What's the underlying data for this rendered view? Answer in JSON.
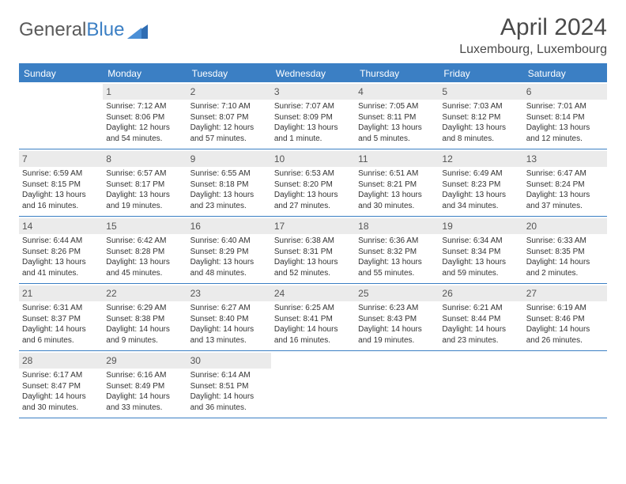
{
  "brand": {
    "name_left": "General",
    "name_right": "Blue"
  },
  "title": "April 2024",
  "location": "Luxembourg, Luxembourg",
  "colors": {
    "accent": "#3b7fc4",
    "header_text": "#ffffff",
    "daynum_bg": "#ebebeb",
    "text": "#333333",
    "title_text": "#4a4a4a",
    "background": "#ffffff"
  },
  "typography": {
    "title_fontsize": 30,
    "location_fontsize": 16,
    "dayname_fontsize": 12,
    "daynum_fontsize": 12,
    "info_fontsize": 10
  },
  "daynames": [
    "Sunday",
    "Monday",
    "Tuesday",
    "Wednesday",
    "Thursday",
    "Friday",
    "Saturday"
  ],
  "weeks": [
    [
      {
        "empty": true
      },
      {
        "num": "1",
        "sunrise": "Sunrise: 7:12 AM",
        "sunset": "Sunset: 8:06 PM",
        "day1": "Daylight: 12 hours",
        "day2": "and 54 minutes."
      },
      {
        "num": "2",
        "sunrise": "Sunrise: 7:10 AM",
        "sunset": "Sunset: 8:07 PM",
        "day1": "Daylight: 12 hours",
        "day2": "and 57 minutes."
      },
      {
        "num": "3",
        "sunrise": "Sunrise: 7:07 AM",
        "sunset": "Sunset: 8:09 PM",
        "day1": "Daylight: 13 hours",
        "day2": "and 1 minute."
      },
      {
        "num": "4",
        "sunrise": "Sunrise: 7:05 AM",
        "sunset": "Sunset: 8:11 PM",
        "day1": "Daylight: 13 hours",
        "day2": "and 5 minutes."
      },
      {
        "num": "5",
        "sunrise": "Sunrise: 7:03 AM",
        "sunset": "Sunset: 8:12 PM",
        "day1": "Daylight: 13 hours",
        "day2": "and 8 minutes."
      },
      {
        "num": "6",
        "sunrise": "Sunrise: 7:01 AM",
        "sunset": "Sunset: 8:14 PM",
        "day1": "Daylight: 13 hours",
        "day2": "and 12 minutes."
      }
    ],
    [
      {
        "num": "7",
        "sunrise": "Sunrise: 6:59 AM",
        "sunset": "Sunset: 8:15 PM",
        "day1": "Daylight: 13 hours",
        "day2": "and 16 minutes."
      },
      {
        "num": "8",
        "sunrise": "Sunrise: 6:57 AM",
        "sunset": "Sunset: 8:17 PM",
        "day1": "Daylight: 13 hours",
        "day2": "and 19 minutes."
      },
      {
        "num": "9",
        "sunrise": "Sunrise: 6:55 AM",
        "sunset": "Sunset: 8:18 PM",
        "day1": "Daylight: 13 hours",
        "day2": "and 23 minutes."
      },
      {
        "num": "10",
        "sunrise": "Sunrise: 6:53 AM",
        "sunset": "Sunset: 8:20 PM",
        "day1": "Daylight: 13 hours",
        "day2": "and 27 minutes."
      },
      {
        "num": "11",
        "sunrise": "Sunrise: 6:51 AM",
        "sunset": "Sunset: 8:21 PM",
        "day1": "Daylight: 13 hours",
        "day2": "and 30 minutes."
      },
      {
        "num": "12",
        "sunrise": "Sunrise: 6:49 AM",
        "sunset": "Sunset: 8:23 PM",
        "day1": "Daylight: 13 hours",
        "day2": "and 34 minutes."
      },
      {
        "num": "13",
        "sunrise": "Sunrise: 6:47 AM",
        "sunset": "Sunset: 8:24 PM",
        "day1": "Daylight: 13 hours",
        "day2": "and 37 minutes."
      }
    ],
    [
      {
        "num": "14",
        "sunrise": "Sunrise: 6:44 AM",
        "sunset": "Sunset: 8:26 PM",
        "day1": "Daylight: 13 hours",
        "day2": "and 41 minutes."
      },
      {
        "num": "15",
        "sunrise": "Sunrise: 6:42 AM",
        "sunset": "Sunset: 8:28 PM",
        "day1": "Daylight: 13 hours",
        "day2": "and 45 minutes."
      },
      {
        "num": "16",
        "sunrise": "Sunrise: 6:40 AM",
        "sunset": "Sunset: 8:29 PM",
        "day1": "Daylight: 13 hours",
        "day2": "and 48 minutes."
      },
      {
        "num": "17",
        "sunrise": "Sunrise: 6:38 AM",
        "sunset": "Sunset: 8:31 PM",
        "day1": "Daylight: 13 hours",
        "day2": "and 52 minutes."
      },
      {
        "num": "18",
        "sunrise": "Sunrise: 6:36 AM",
        "sunset": "Sunset: 8:32 PM",
        "day1": "Daylight: 13 hours",
        "day2": "and 55 minutes."
      },
      {
        "num": "19",
        "sunrise": "Sunrise: 6:34 AM",
        "sunset": "Sunset: 8:34 PM",
        "day1": "Daylight: 13 hours",
        "day2": "and 59 minutes."
      },
      {
        "num": "20",
        "sunrise": "Sunrise: 6:33 AM",
        "sunset": "Sunset: 8:35 PM",
        "day1": "Daylight: 14 hours",
        "day2": "and 2 minutes."
      }
    ],
    [
      {
        "num": "21",
        "sunrise": "Sunrise: 6:31 AM",
        "sunset": "Sunset: 8:37 PM",
        "day1": "Daylight: 14 hours",
        "day2": "and 6 minutes."
      },
      {
        "num": "22",
        "sunrise": "Sunrise: 6:29 AM",
        "sunset": "Sunset: 8:38 PM",
        "day1": "Daylight: 14 hours",
        "day2": "and 9 minutes."
      },
      {
        "num": "23",
        "sunrise": "Sunrise: 6:27 AM",
        "sunset": "Sunset: 8:40 PM",
        "day1": "Daylight: 14 hours",
        "day2": "and 13 minutes."
      },
      {
        "num": "24",
        "sunrise": "Sunrise: 6:25 AM",
        "sunset": "Sunset: 8:41 PM",
        "day1": "Daylight: 14 hours",
        "day2": "and 16 minutes."
      },
      {
        "num": "25",
        "sunrise": "Sunrise: 6:23 AM",
        "sunset": "Sunset: 8:43 PM",
        "day1": "Daylight: 14 hours",
        "day2": "and 19 minutes."
      },
      {
        "num": "26",
        "sunrise": "Sunrise: 6:21 AM",
        "sunset": "Sunset: 8:44 PM",
        "day1": "Daylight: 14 hours",
        "day2": "and 23 minutes."
      },
      {
        "num": "27",
        "sunrise": "Sunrise: 6:19 AM",
        "sunset": "Sunset: 8:46 PM",
        "day1": "Daylight: 14 hours",
        "day2": "and 26 minutes."
      }
    ],
    [
      {
        "num": "28",
        "sunrise": "Sunrise: 6:17 AM",
        "sunset": "Sunset: 8:47 PM",
        "day1": "Daylight: 14 hours",
        "day2": "and 30 minutes."
      },
      {
        "num": "29",
        "sunrise": "Sunrise: 6:16 AM",
        "sunset": "Sunset: 8:49 PM",
        "day1": "Daylight: 14 hours",
        "day2": "and 33 minutes."
      },
      {
        "num": "30",
        "sunrise": "Sunrise: 6:14 AM",
        "sunset": "Sunset: 8:51 PM",
        "day1": "Daylight: 14 hours",
        "day2": "and 36 minutes."
      },
      {
        "empty": true
      },
      {
        "empty": true
      },
      {
        "empty": true
      },
      {
        "empty": true
      }
    ]
  ]
}
